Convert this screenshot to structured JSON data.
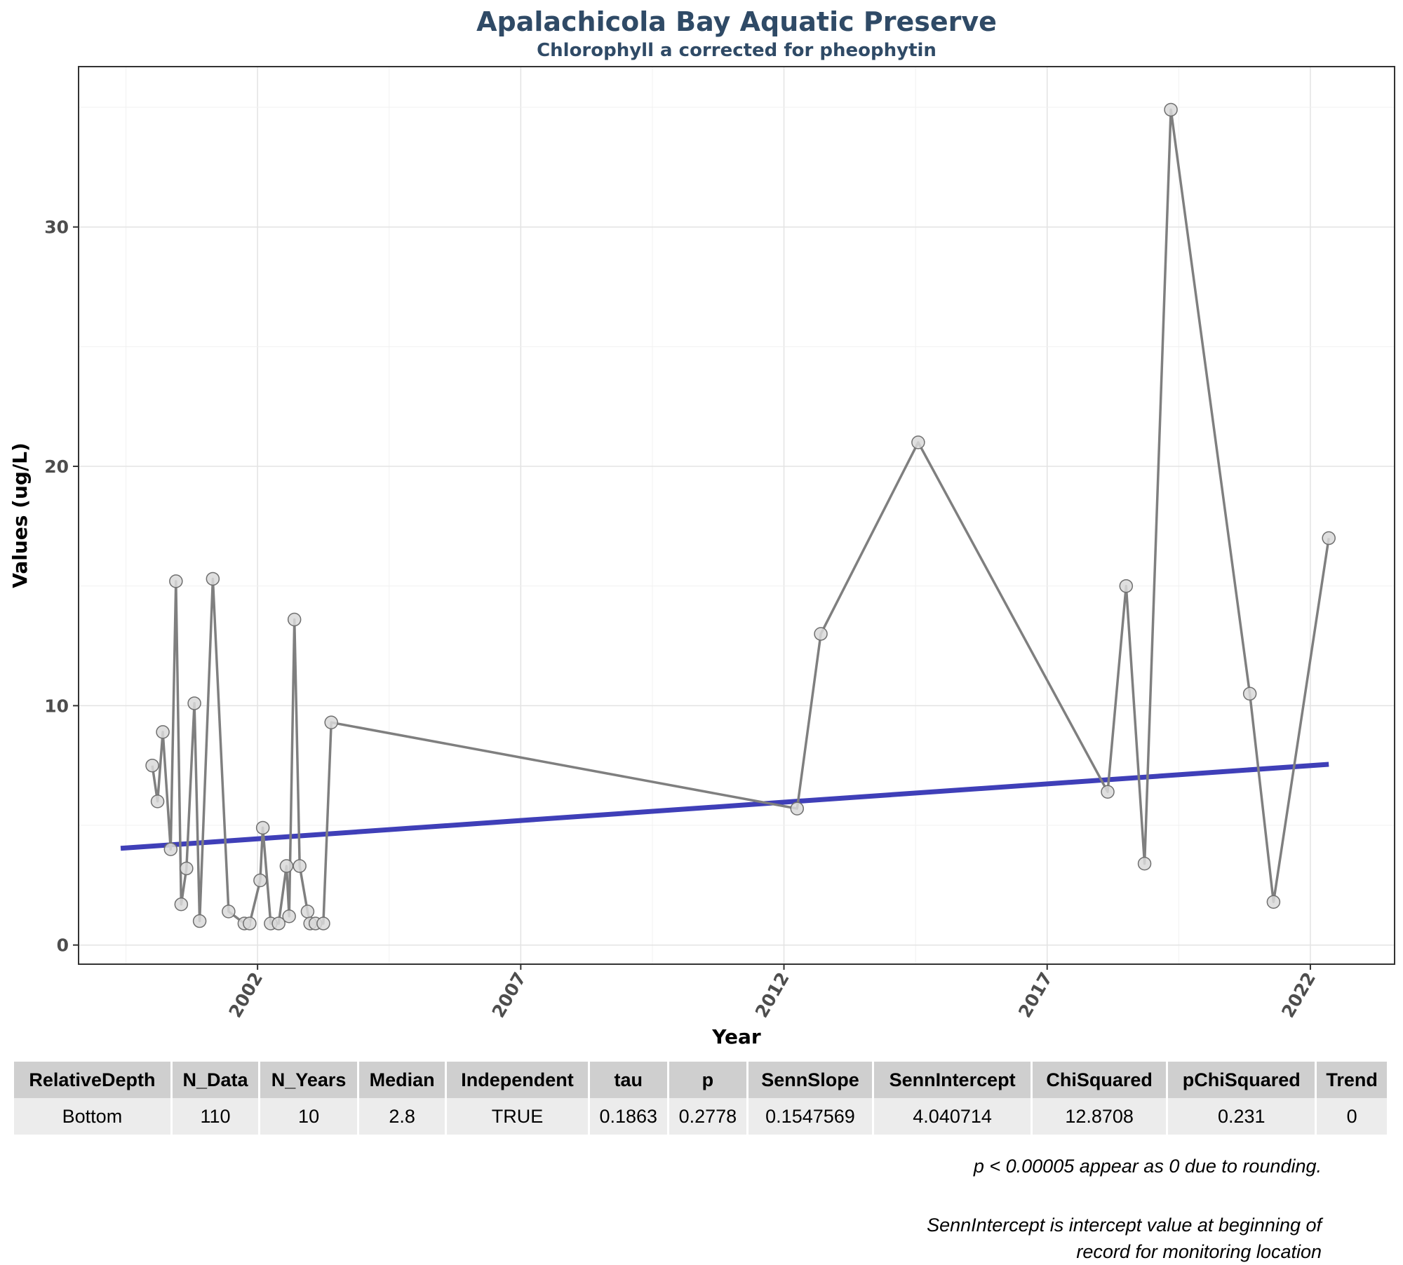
{
  "chart_data": {
    "type": "line",
    "title": "Apalachicola Bay Aquatic Preserve",
    "subtitle": "Chlorophyll a corrected for pheophytin",
    "xlabel": "Year",
    "ylabel": "Values (ug/L)",
    "xlim": [
      1998.6,
      2023.6
    ],
    "ylim": [
      -0.8,
      36.7
    ],
    "x_ticks": [
      2002,
      2007,
      2012,
      2017,
      2022
    ],
    "y_ticks": [
      0,
      10,
      20,
      30
    ],
    "grid": true,
    "series": [
      {
        "x": [
          2000.0,
          2000.1,
          2000.2,
          2000.35,
          2000.45,
          2000.55,
          2000.65,
          2000.8,
          2000.9,
          2001.15,
          2001.45,
          2001.75,
          2001.85,
          2002.05,
          2002.1,
          2002.25,
          2002.4,
          2002.55,
          2002.6,
          2002.7,
          2002.8,
          2002.95,
          2003.0,
          2003.1,
          2003.25,
          2003.4,
          2012.25,
          2012.7,
          2014.55,
          2018.15,
          2018.5,
          2018.85,
          2019.35,
          2020.85,
          2021.3,
          2022.35
        ],
        "values": [
          7.5,
          6.0,
          8.9,
          4.0,
          15.2,
          1.7,
          3.2,
          10.1,
          1.0,
          15.3,
          1.4,
          0.9,
          0.9,
          2.7,
          4.9,
          0.9,
          0.9,
          3.3,
          1.2,
          13.6,
          3.3,
          1.4,
          0.9,
          0.9,
          0.9,
          9.3,
          5.7,
          13.0,
          21.0,
          6.4,
          15.0,
          3.4,
          34.9,
          10.5,
          1.8,
          17.0
        ],
        "color": "#7f7f7f",
        "marker_fill": "#d9d9d9"
      }
    ],
    "trend_line": {
      "x": [
        1999.4,
        2022.35
      ],
      "values": [
        4.04,
        7.55
      ],
      "color": "#3f3fb8"
    }
  },
  "table": {
    "headers": [
      "RelativeDepth",
      "N_Data",
      "N_Years",
      "Median",
      "Independent",
      "tau",
      "p",
      "SennSlope",
      "SennIntercept",
      "ChiSquared",
      "pChiSquared",
      "Trend"
    ],
    "rows": [
      [
        "Bottom",
        "110",
        "10",
        "2.8",
        "TRUE",
        "0.1863",
        "0.2778",
        "0.1547569",
        "4.040714",
        "12.8708",
        "0.231",
        "0"
      ]
    ]
  },
  "footnotes": {
    "line1": "p < 0.00005 appear as 0 due to rounding.",
    "line2a": "SennIntercept is intercept value at beginning of",
    "line2b": "record for monitoring location"
  }
}
